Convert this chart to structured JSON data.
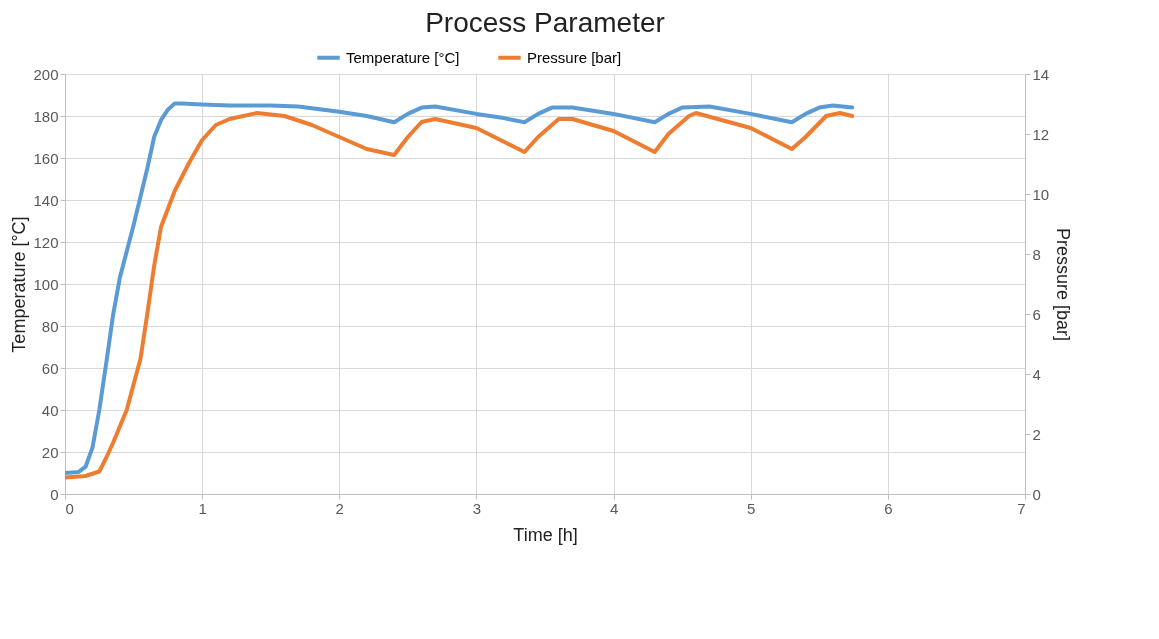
{
  "chart_data": {
    "type": "line",
    "title": "Process Parameter",
    "xlabel": "Time  [h]",
    "ylabel": "Temperature [°C]",
    "y2label": "Pressure [bar]",
    "xlim": [
      0,
      7
    ],
    "xticks": [
      0,
      1,
      2,
      3,
      4,
      5,
      6,
      7
    ],
    "ylim": [
      0,
      200
    ],
    "yticks": [
      0,
      20,
      40,
      60,
      80,
      100,
      120,
      140,
      160,
      180,
      200
    ],
    "y2lim": [
      0,
      14
    ],
    "y2ticks": [
      0,
      2,
      4,
      6,
      8,
      10,
      12,
      14
    ],
    "grid": true,
    "legend": "top",
    "marker": "none",
    "line_style": "solid",
    "series": [
      {
        "name": "Temperature [°C]",
        "color": "#5b9bd5",
        "x": [
          0,
          0.1,
          0.15,
          0.2,
          0.25,
          0.3,
          0.35,
          0.4,
          0.5,
          0.6,
          0.65,
          0.7,
          0.75,
          0.8,
          0.85,
          1.0,
          1.2,
          1.5,
          1.7,
          2.0,
          2.2,
          2.4,
          2.5,
          2.6,
          2.7,
          3.0,
          3.2,
          3.35,
          3.45,
          3.55,
          3.7,
          4.0,
          4.3,
          4.4,
          4.5,
          4.7,
          5.0,
          5.3,
          5.4,
          5.5,
          5.6,
          5.74
        ],
        "values": [
          10,
          10.5,
          13,
          22,
          40,
          62,
          85,
          103,
          128,
          155,
          170,
          178,
          183,
          186,
          186,
          185.5,
          185,
          185,
          184.5,
          182,
          180,
          177,
          181,
          184,
          184.5,
          181,
          179,
          177,
          181,
          184,
          184,
          181,
          177,
          181,
          184,
          184.5,
          181,
          177,
          181,
          184,
          185,
          184
        ]
      },
      {
        "name": "Pressure [bar]",
        "color": "#ed7d31",
        "axis": "y2",
        "x": [
          0,
          0.15,
          0.25,
          0.3,
          0.35,
          0.45,
          0.55,
          0.6,
          0.65,
          0.7,
          0.8,
          0.9,
          1.0,
          1.1,
          1.2,
          1.4,
          1.6,
          1.8,
          2.0,
          2.2,
          2.4,
          2.5,
          2.6,
          2.7,
          3.0,
          3.35,
          3.45,
          3.6,
          3.7,
          4.0,
          4.3,
          4.4,
          4.55,
          4.6,
          5.0,
          5.3,
          5.4,
          5.55,
          5.65,
          5.74
        ],
        "values": [
          0.55,
          0.6,
          0.75,
          1.2,
          1.7,
          2.8,
          4.5,
          6.0,
          7.6,
          8.9,
          10.1,
          11.0,
          11.8,
          12.3,
          12.5,
          12.7,
          12.6,
          12.3,
          11.9,
          11.5,
          11.3,
          11.9,
          12.4,
          12.5,
          12.2,
          11.4,
          11.9,
          12.5,
          12.5,
          12.1,
          11.4,
          12.0,
          12.6,
          12.7,
          12.2,
          11.5,
          11.9,
          12.6,
          12.7,
          12.6
        ]
      }
    ]
  }
}
